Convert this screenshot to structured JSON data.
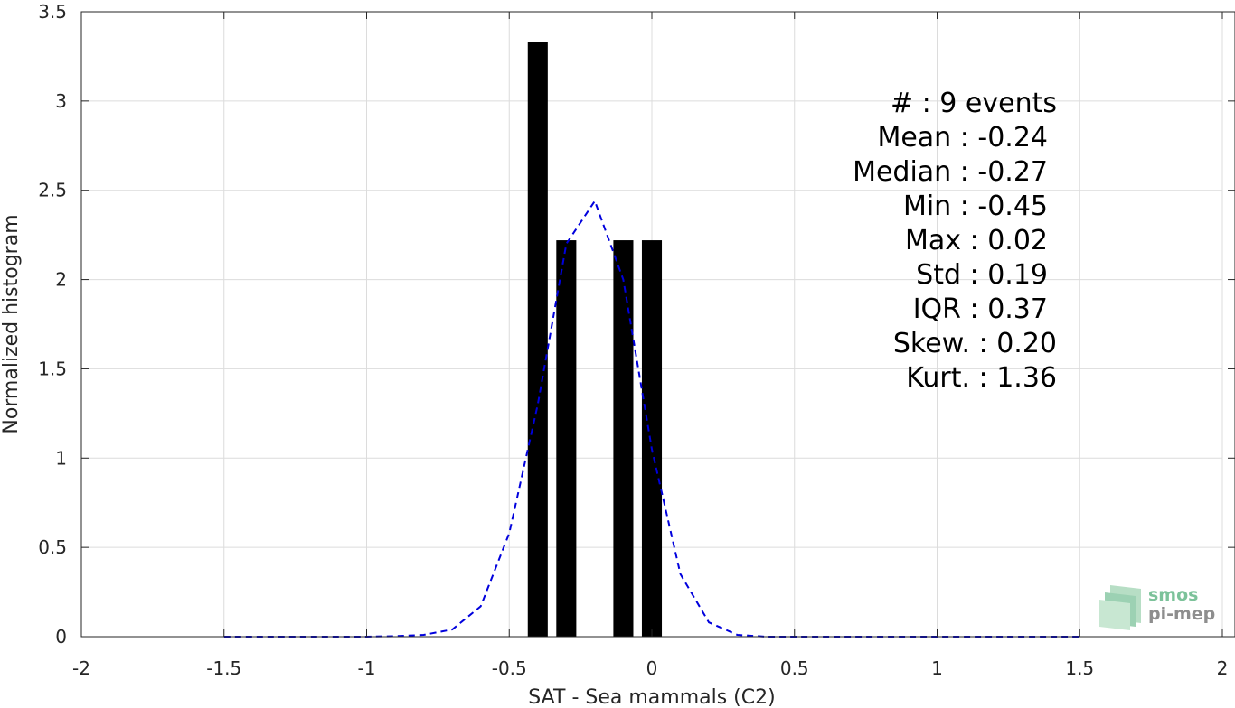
{
  "chart_data": {
    "type": "bar",
    "xlabel": "SAT - Sea mammals (C2)",
    "ylabel": "Normalized histogram",
    "xlim": [
      -2,
      2
    ],
    "ylim": [
      0,
      3.5
    ],
    "grid": true,
    "xticks": [
      "-2",
      "-1.5",
      "-1",
      "-0.5",
      "0",
      "0.5",
      "1",
      "1.5",
      "2"
    ],
    "yticks": [
      "0",
      "0.5",
      "1",
      "1.5",
      "2",
      "2.5",
      "3",
      "3.5"
    ],
    "bars": [
      {
        "x": -0.4,
        "value": 3.33
      },
      {
        "x": -0.3,
        "value": 2.22
      },
      {
        "x": -0.1,
        "value": 2.22
      },
      {
        "x": 0.0,
        "value": 2.22
      }
    ],
    "bar_width": 0.07,
    "bar_color": "#000000",
    "fit_curve": {
      "style": "dashed",
      "color": "#0000dd",
      "points": [
        [
          -1.5,
          0.0
        ],
        [
          -1.4,
          0.0
        ],
        [
          -1.3,
          0.0
        ],
        [
          -1.2,
          0.0
        ],
        [
          -1.1,
          0.0
        ],
        [
          -1.0,
          0.0
        ],
        [
          -0.9,
          0.003
        ],
        [
          -0.8,
          0.01
        ],
        [
          -0.7,
          0.04
        ],
        [
          -0.6,
          0.17
        ],
        [
          -0.5,
          0.58
        ],
        [
          -0.4,
          1.3
        ],
        [
          -0.3,
          2.2
        ],
        [
          -0.2,
          2.44
        ],
        [
          -0.1,
          2.0
        ],
        [
          0.0,
          1.05
        ],
        [
          0.1,
          0.35
        ],
        [
          0.2,
          0.08
        ],
        [
          0.3,
          0.01
        ],
        [
          0.4,
          0.0
        ],
        [
          0.5,
          0.0
        ],
        [
          0.6,
          0.0
        ],
        [
          0.8,
          0.0
        ],
        [
          1.0,
          0.0
        ],
        [
          1.2,
          0.0
        ],
        [
          1.4,
          0.0
        ],
        [
          1.5,
          0.0
        ]
      ]
    },
    "stats": [
      "#  : 9 events",
      "Mean : -0.24",
      "Median : -0.27",
      "Min : -0.45",
      "Max : 0.02",
      "Std : 0.19",
      "IQR : 0.37",
      "Skew. : 0.20",
      "Kurt. : 1.36"
    ]
  },
  "logo": {
    "line1": "smos",
    "line2": "pi-mep"
  }
}
